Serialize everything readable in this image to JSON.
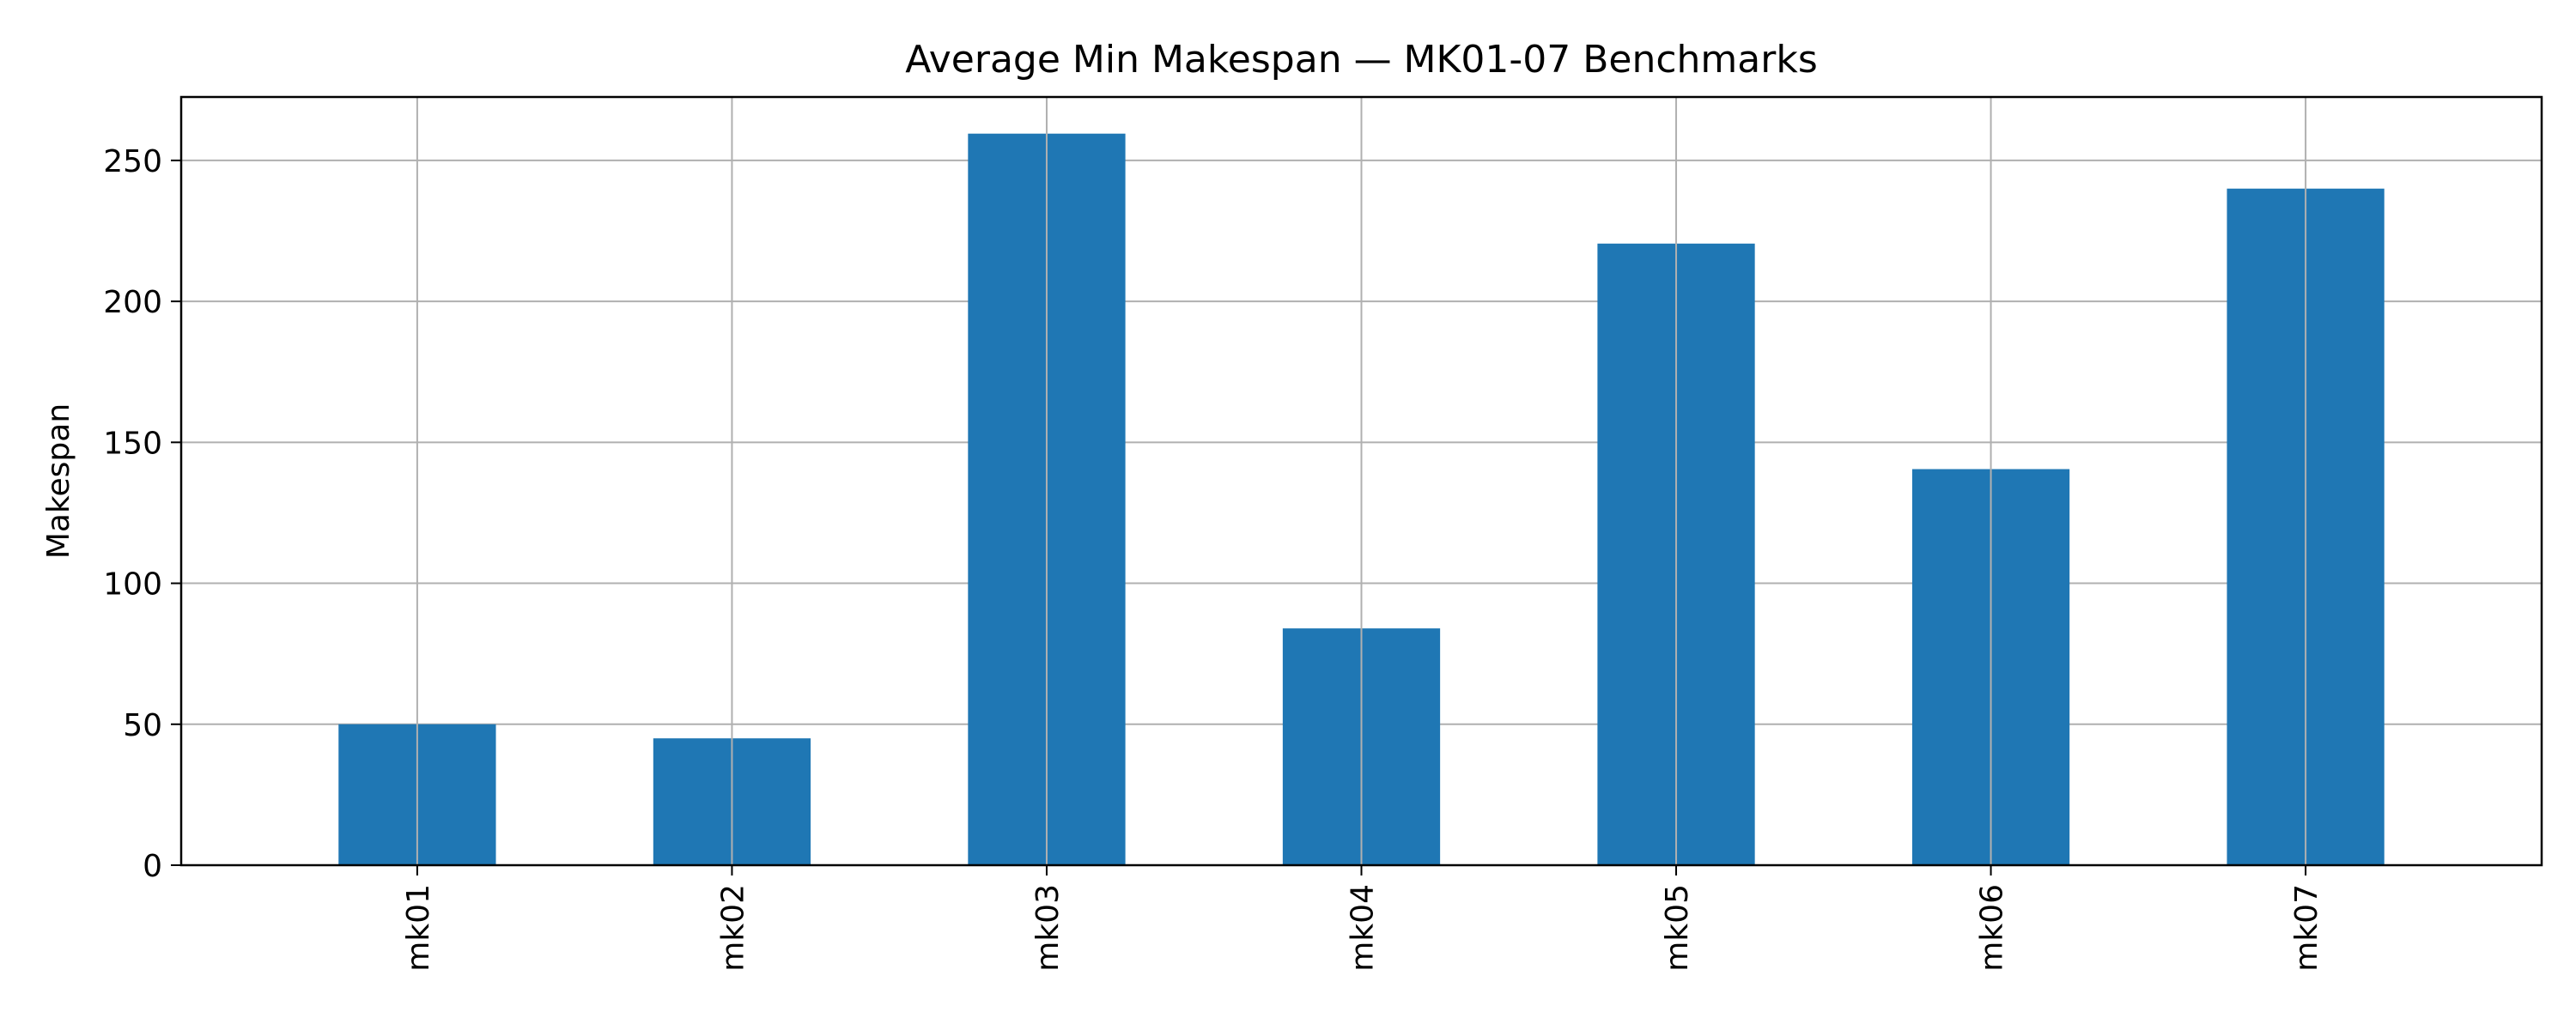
{
  "chart_data": {
    "type": "bar",
    "title": "Average Min Makespan — MK01-07 Benchmarks",
    "xlabel": "",
    "ylabel": "Makespan",
    "categories": [
      "mk01",
      "mk02",
      "mk03",
      "mk04",
      "mk05",
      "mk06",
      "mk07"
    ],
    "series": [
      {
        "values": [
          50,
          45,
          259.5,
          84,
          220.5,
          140.5,
          240
        ]
      }
    ],
    "ylim": [
      0,
      272.5
    ],
    "yticks": [
      0,
      50,
      100,
      150,
      200,
      250
    ],
    "xtick_rotation": "vertical",
    "grid": true,
    "legend": "none",
    "colors": {
      "bar": "#1f77b4",
      "grid": "#b0b0b0",
      "axes": "#000000",
      "background": "#ffffff"
    }
  }
}
